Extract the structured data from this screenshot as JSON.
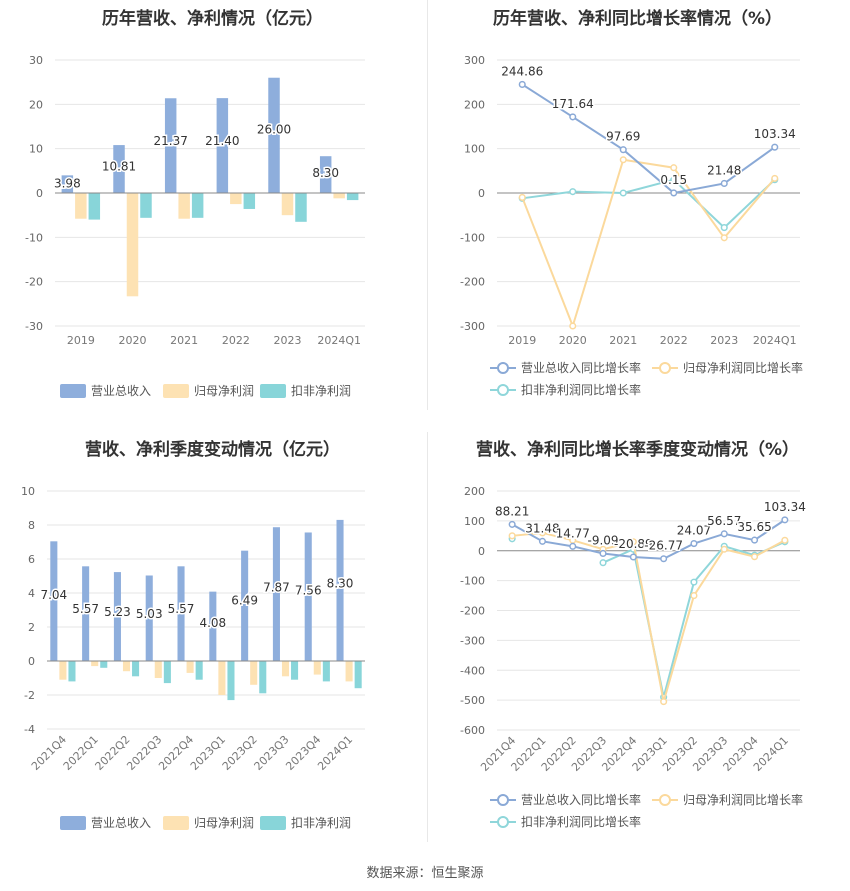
{
  "footer": "数据来源：恒生聚源",
  "colors": {
    "revenue": "#8eaedc",
    "net_profit": "#fde2b3",
    "deducted_profit": "#88d5d9",
    "revenue_line": "#8aa9d6",
    "net_line": "#fbd99c",
    "deducted_line": "#8fd6da"
  },
  "chart_data": [
    {
      "id": "annual-amounts",
      "type": "bar",
      "title": "历年营收、净利情况（亿元）",
      "categories": [
        "2019",
        "2020",
        "2021",
        "2022",
        "2023",
        "2024Q1"
      ],
      "ylim": [
        -30,
        30
      ],
      "yticks": [
        -30,
        -20,
        -10,
        0,
        10,
        20,
        30
      ],
      "series": [
        {
          "name": "营业总收入",
          "values": [
            3.98,
            10.81,
            21.37,
            21.4,
            26.0,
            8.3
          ],
          "labels": [
            "3.98",
            "10.81",
            "21.37",
            "21.40",
            "26.00",
            "8.30"
          ]
        },
        {
          "name": "归母净利润",
          "values": [
            -5.8,
            -23.3,
            -5.8,
            -2.5,
            -5.0,
            -1.2
          ]
        },
        {
          "name": "扣非净利润",
          "values": [
            -6.0,
            -5.6,
            -5.6,
            -3.6,
            -6.5,
            -1.6
          ]
        }
      ],
      "legend": "bottom",
      "grid": true
    },
    {
      "id": "annual-growth",
      "type": "line",
      "title": "历年营收、净利同比增长率情况（%）",
      "categories": [
        "2019",
        "2020",
        "2021",
        "2022",
        "2023",
        "2024Q1"
      ],
      "ylim": [
        -300,
        300
      ],
      "yticks": [
        -300,
        -200,
        -100,
        0,
        100,
        200,
        300
      ],
      "series": [
        {
          "name": "营业总收入同比增长率",
          "values": [
            244.86,
            171.64,
            97.69,
            0.15,
            21.48,
            103.34
          ],
          "labels": [
            "244.86",
            "171.64",
            "97.69",
            "0.15",
            "21.48",
            "103.34"
          ]
        },
        {
          "name": "归母净利润同比增长率",
          "values": [
            -10,
            -300,
            75,
            57,
            -101,
            33
          ]
        },
        {
          "name": "扣非净利润同比增长率",
          "values": [
            -12,
            3,
            0,
            30,
            -78,
            30
          ]
        }
      ],
      "legend": "bottom",
      "grid": true
    },
    {
      "id": "quarterly-amounts",
      "type": "bar",
      "title": "营收、净利季度变动情况（亿元）",
      "categories": [
        "2021Q4",
        "2022Q1",
        "2022Q2",
        "2022Q3",
        "2022Q4",
        "2023Q1",
        "2023Q2",
        "2023Q3",
        "2023Q4",
        "2024Q1"
      ],
      "ylim": [
        -4,
        10
      ],
      "yticks": [
        -4,
        -2,
        0,
        2,
        4,
        6,
        8,
        10
      ],
      "series": [
        {
          "name": "营业总收入",
          "values": [
            7.04,
            5.57,
            5.23,
            5.03,
            5.57,
            4.08,
            6.49,
            7.87,
            7.56,
            8.3
          ],
          "labels": [
            "7.04",
            "5.57",
            "5.23",
            "5.03",
            "5.57",
            "4.08",
            "6.49",
            "7.87",
            "7.56",
            "8.30"
          ]
        },
        {
          "name": "归母净利润",
          "values": [
            -1.1,
            -0.3,
            -0.6,
            -1.0,
            -0.7,
            -2.0,
            -1.4,
            -0.9,
            -0.8,
            -1.2
          ]
        },
        {
          "name": "扣非净利润",
          "values": [
            -1.2,
            -0.4,
            -0.9,
            -1.3,
            -1.1,
            -2.3,
            -1.9,
            -1.1,
            -1.2,
            -1.6
          ]
        }
      ],
      "legend": "bottom",
      "grid": true
    },
    {
      "id": "quarterly-growth",
      "type": "line",
      "title": "营收、净利同比增长率季度变动情况（%）",
      "categories": [
        "2021Q4",
        "2022Q1",
        "2022Q2",
        "2022Q3",
        "2022Q4",
        "2023Q1",
        "2023Q2",
        "2023Q3",
        "2023Q4",
        "2024Q1"
      ],
      "ylim": [
        -600,
        200
      ],
      "yticks": [
        -600,
        -500,
        -400,
        -300,
        -200,
        -100,
        0,
        100,
        200
      ],
      "series": [
        {
          "name": "营业总收入同比增长率",
          "values": [
            88.21,
            31.48,
            14.77,
            -9.09,
            -20.89,
            -26.77,
            24.07,
            56.57,
            35.65,
            103.34
          ],
          "labels": [
            "88.21",
            "31.48",
            "14.77",
            "-9.09",
            "-20.89",
            "-26.77",
            "24.07",
            "56.57",
            "35.65",
            "103.34"
          ]
        },
        {
          "name": "归母净利润同比增长率",
          "values": [
            50,
            60,
            35,
            5,
            30,
            -505,
            -150,
            5,
            -20,
            35
          ]
        },
        {
          "name": "扣非净利润同比增长率",
          "values": [
            40,
            null,
            null,
            -40,
            5,
            -490,
            -105,
            15,
            -15,
            30
          ]
        }
      ],
      "legend": "bottom",
      "grid": true
    }
  ]
}
